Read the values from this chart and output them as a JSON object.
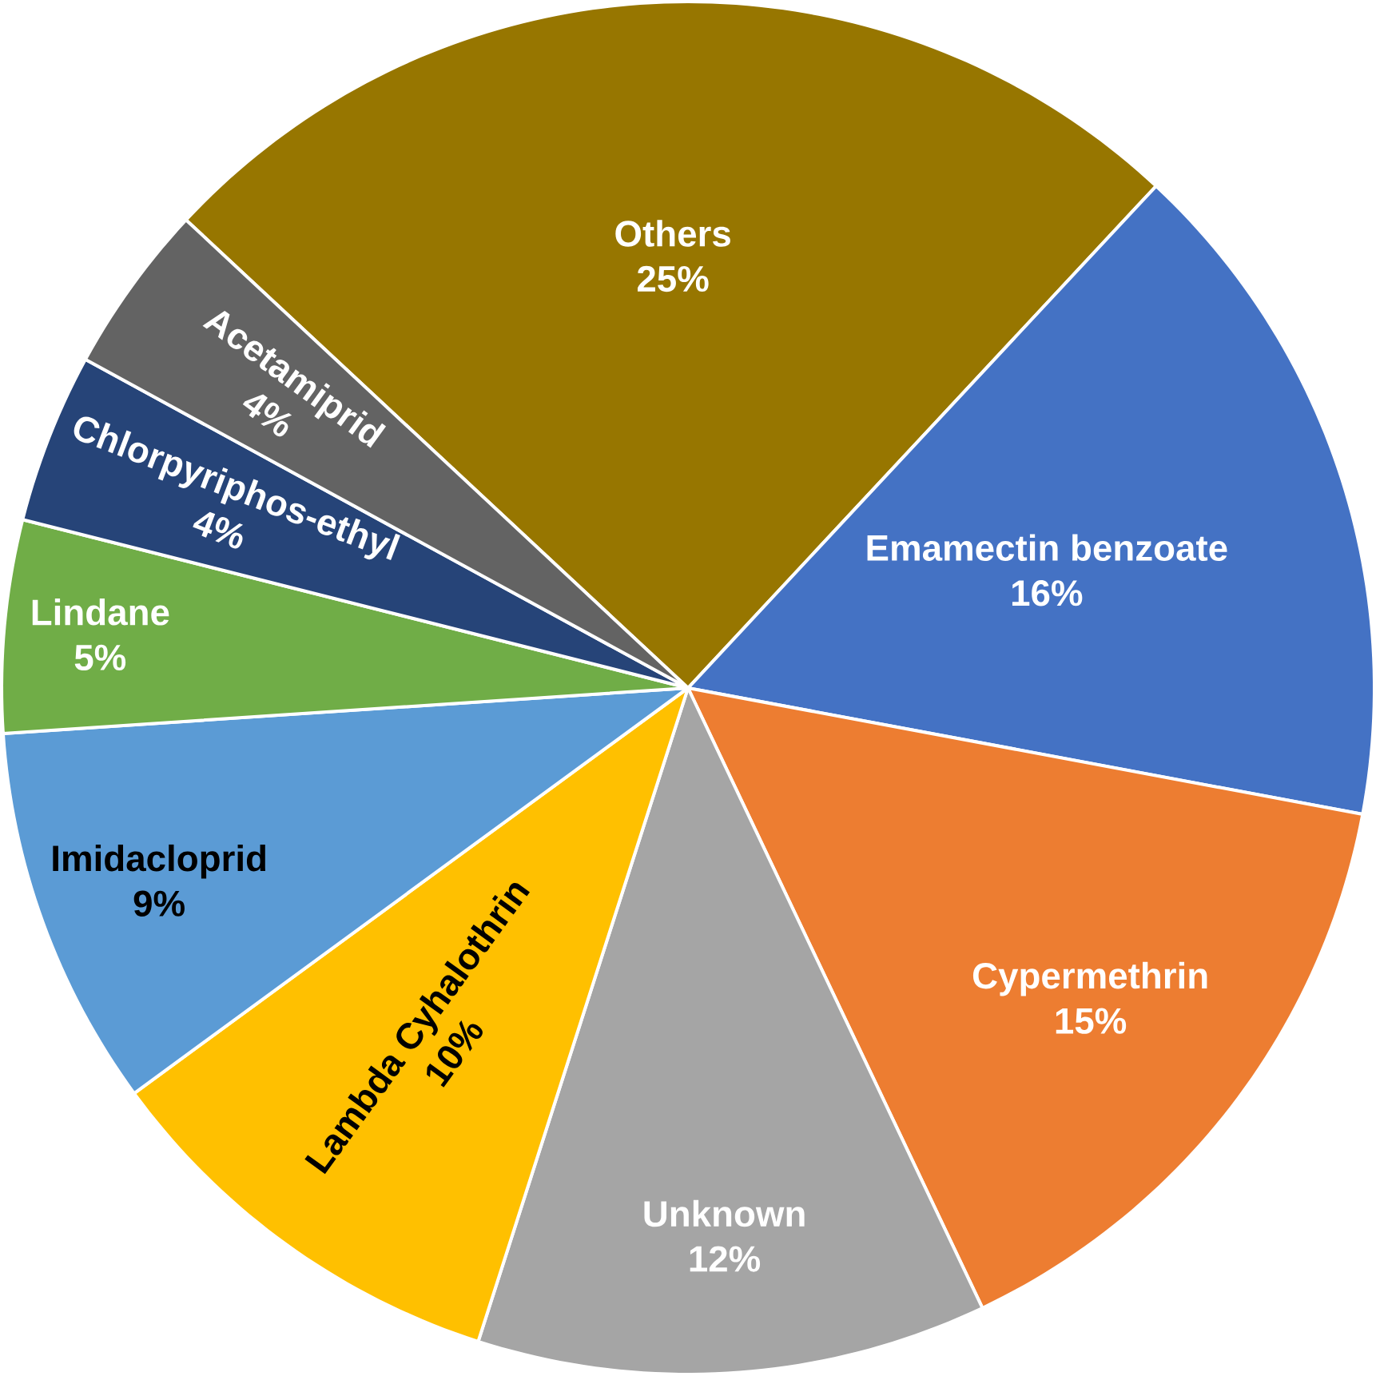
{
  "chart_data": {
    "type": "pie",
    "categories": [
      "Others",
      "Emamectin benzoate",
      "Cypermethrin",
      "Unknown",
      "Lambda Cyhalothrin",
      "Imidacloprid",
      "Lindane",
      "Chlorpyriphos-ethyl",
      "Acetamiprid"
    ],
    "values": [
      25,
      16,
      15,
      12,
      10,
      9,
      5,
      4,
      4
    ],
    "value_labels": [
      "25%",
      "16%",
      "15%",
      "12%",
      "10%",
      "9%",
      "5%",
      "4%",
      "4%"
    ],
    "colors": [
      "#977600",
      "#4472c4",
      "#ed7d31",
      "#a5a5a5",
      "#ffc000",
      "#5b9bd5",
      "#70ad47",
      "#264478",
      "#636363"
    ]
  }
}
